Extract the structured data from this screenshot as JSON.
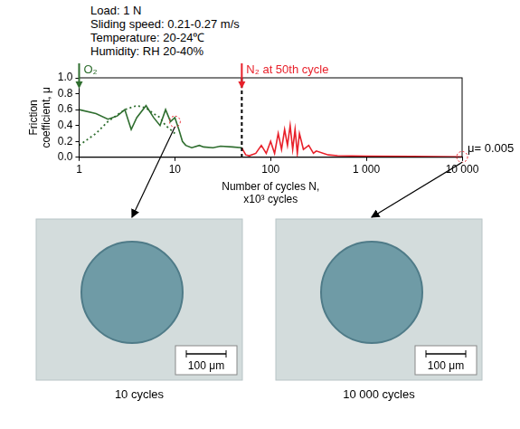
{
  "conditions": [
    "Load: 1 N",
    "Sliding speed: 0.21-0.27 m/s",
    "Temperature: 20-24℃",
    "Humidity: RH 20-40%"
  ],
  "chart_data": {
    "type": "line",
    "log": "x",
    "grid": false,
    "x_label": "Number of cycles N, x10³ cycles",
    "y_label": "Friction coefficient, μ",
    "xlim": [
      1,
      10000
    ],
    "xticks": [
      1,
      10,
      100,
      {
        "value": 1000,
        "label": "1 000"
      },
      {
        "value": 10000,
        "label": "10 000"
      }
    ],
    "ylim": [
      0,
      1.0
    ],
    "yticks": [
      {
        "value": 0,
        "label": "0.0"
      },
      {
        "value": 0.2,
        "label": "0.2"
      },
      {
        "value": 0.4,
        "label": "0.4"
      },
      {
        "value": 0.6,
        "label": "0.6"
      },
      {
        "value": 0.8,
        "label": "0.8"
      },
      {
        "value": 1.0,
        "label": "1.0"
      }
    ],
    "series": [
      {
        "color": "#2f6e2f",
        "line_style": "solid",
        "marker": "none",
        "x": [
          1,
          1.5,
          2,
          2.5,
          3,
          3.5,
          4,
          5,
          6,
          7,
          8,
          9,
          10,
          11,
          12,
          13,
          15,
          18,
          20,
          25,
          30,
          40,
          50
        ],
        "values": [
          0.6,
          0.55,
          0.48,
          0.52,
          0.6,
          0.35,
          0.5,
          0.65,
          0.5,
          0.4,
          0.6,
          0.45,
          0.5,
          0.35,
          0.2,
          0.15,
          0.12,
          0.15,
          0.13,
          0.12,
          0.14,
          0.13,
          0.12
        ]
      },
      {
        "color": "#2f6e2f",
        "line_style": "dotted",
        "marker": "none",
        "x": [
          1,
          1.5,
          2,
          3,
          4,
          5,
          6,
          7,
          8,
          9,
          10
        ],
        "values": [
          0.15,
          0.3,
          0.45,
          0.6,
          0.65,
          0.62,
          0.55,
          0.5,
          0.4,
          0.35,
          0.3
        ]
      },
      {
        "color": "#e8202a",
        "line_style": "solid",
        "marker": "none",
        "x": [
          50,
          55,
          60,
          70,
          80,
          90,
          100,
          110,
          120,
          130,
          140,
          150,
          160,
          170,
          180,
          190,
          200,
          220,
          250,
          280,
          300,
          400,
          500,
          1000,
          3000,
          10000
        ],
        "values": [
          0.12,
          0.03,
          0.02,
          0.05,
          0.15,
          0.05,
          0.2,
          0.05,
          0.3,
          0.1,
          0.35,
          0.15,
          0.4,
          0.1,
          0.35,
          0.05,
          0.3,
          0.1,
          0.15,
          0.05,
          0.08,
          0.03,
          0.02,
          0.015,
          0.01,
          0.005
        ]
      }
    ],
    "annotations": [
      {
        "text": "O₂",
        "x": 1,
        "color": "#2f6e2f"
      },
      {
        "text": "N₂ at 50th cycle",
        "x": 50,
        "color": "#e8202a"
      },
      {
        "text": "μ= 0.005",
        "x": 10000,
        "y": 0.005,
        "color": "#000000"
      }
    ]
  },
  "micrographs": [
    {
      "caption": "10 cycles",
      "scale_bar": "100 μm",
      "x": 10,
      "y": 0.45
    },
    {
      "caption": "10 000 cycles",
      "scale_bar": "100 μm",
      "x": 10000,
      "y": 0.005
    }
  ]
}
